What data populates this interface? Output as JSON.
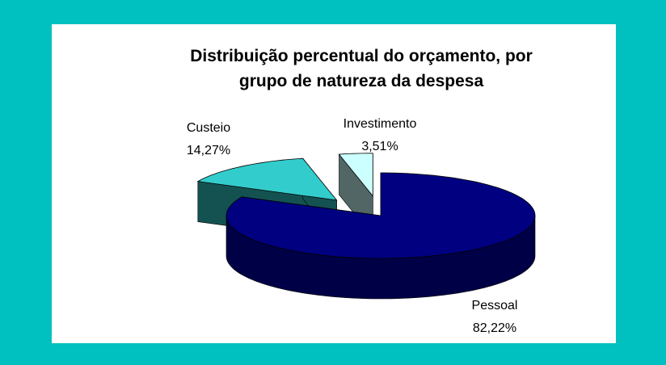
{
  "chart_data": {
    "type": "pie",
    "title": [
      "Distribuição percentual do orçamento, por",
      "grupo de natureza da despesa"
    ],
    "categories": [
      "Pessoal",
      "Custeio",
      "Investimento"
    ],
    "values": [
      82.22,
      14.27,
      3.51
    ],
    "value_labels": [
      "82,22%",
      "14,27%",
      "3,51%"
    ],
    "colors": [
      "#000080",
      "#33cccc",
      "#ccffff"
    ],
    "exploded": true,
    "three_d": true
  }
}
